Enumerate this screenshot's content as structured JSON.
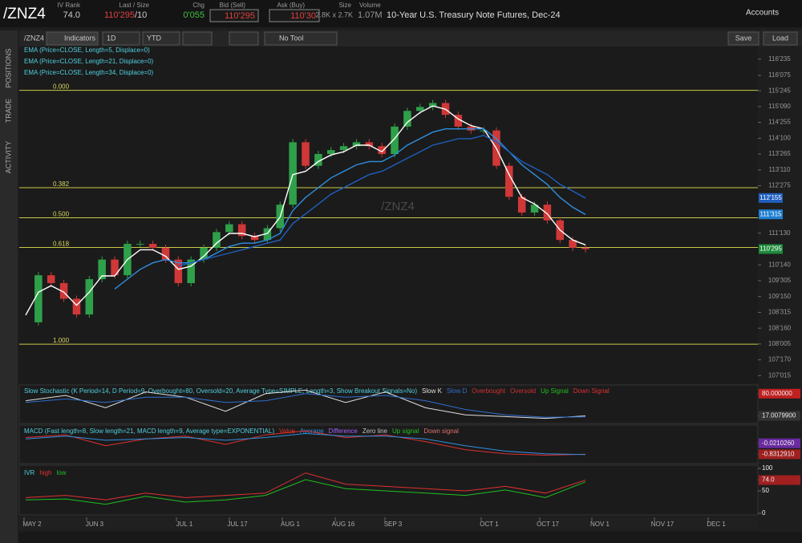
{
  "header": {
    "symbol": "/ZNZ4",
    "iv_rank_label": "IV Rank",
    "iv_rank": "74.0",
    "last_label": "Last / Size",
    "last": "110'295",
    "last_size": "/10",
    "chg_label": "Chg",
    "chg": "0'055",
    "bid_label": "Bid (Sell)",
    "bid": "110'295",
    "ask_label": "Ask (Buy)",
    "ask": "110'30",
    "size_label": "Size",
    "size": "2.8K x 2.7K",
    "volume_label": "Volume",
    "volume": "1.07M",
    "description": "10-Year U.S. Treasury Note Futures, Dec-24",
    "accounts": "Accounts"
  },
  "toolbar": {
    "symbol": "/ZNZ4",
    "indicators": "Indicators",
    "aggregation": "1D",
    "range": "YTD",
    "tool": "No Tool",
    "save": "Save",
    "load": "Load"
  },
  "sidebar": {
    "tabs": [
      "POSITIONS",
      "TRADE",
      "ACTIVITY"
    ]
  },
  "price": {
    "watermark": "/ZNZ4",
    "studies": [
      "EMA (Price=CLOSE, Length=5, Displace=0)",
      "EMA (Price=CLOSE, Length=21, Displace=0)",
      "EMA (Price=CLOSE, Length=34, Displace=0)"
    ],
    "ylim": [
      106.81,
      117.12
    ],
    "yticks": [
      {
        "value": 116.734375,
        "label": "116'235"
      },
      {
        "value": 116.234375,
        "label": "116'075"
      },
      {
        "value": 115.765625,
        "label": "115'245"
      },
      {
        "value": 115.28125,
        "label": "115'090"
      },
      {
        "value": 114.796875,
        "label": "114'255"
      },
      {
        "value": 114.3125,
        "label": "114'100"
      },
      {
        "value": 113.828125,
        "label": "113'265"
      },
      {
        "value": 113.34375,
        "label": "113'110"
      },
      {
        "value": 112.859375,
        "label": "112'275"
      },
      {
        "value": 111.40625,
        "label": "111'130"
      },
      {
        "value": 110.4375,
        "label": "110'140"
      },
      {
        "value": 109.953125,
        "label": "109'305"
      },
      {
        "value": 109.46875,
        "label": "109'150"
      },
      {
        "value": 108.984375,
        "label": "108'315"
      },
      {
        "value": 108.5,
        "label": "108'160"
      },
      {
        "value": 108.015625,
        "label": "108'005"
      },
      {
        "value": 107.53125,
        "label": "107'170"
      },
      {
        "value": 107.046875,
        "label": "107'015"
      }
    ],
    "markers": [
      {
        "value": 112.484375,
        "label": "112'155",
        "color": "#1f5fbf"
      },
      {
        "value": 111.984375,
        "label": "111'315",
        "color": "#1f7fd0"
      },
      {
        "value": 110.921875,
        "label": "110'295",
        "color": "#1e8a3c"
      }
    ],
    "fib": [
      {
        "label": "0.000",
        "price": 115.78
      },
      {
        "label": "0.382",
        "price": 112.8
      },
      {
        "label": "0.500",
        "price": 111.88
      },
      {
        "label": "0.618",
        "price": 110.97
      },
      {
        "label": "1.000",
        "price": 108.01
      }
    ],
    "closes": [
      108.68,
      110.12,
      109.88,
      109.4,
      108.92,
      110.0,
      110.6,
      110.12,
      111.08,
      111.08,
      110.96,
      110.6,
      109.88,
      110.6,
      110.96,
      111.44,
      111.68,
      111.32,
      111.2,
      111.56,
      112.28,
      114.19,
      113.47,
      113.83,
      113.95,
      114.07,
      114.19,
      114.07,
      113.83,
      114.67,
      115.15,
      115.27,
      115.39,
      115.03,
      114.67,
      114.55,
      114.55,
      113.47,
      112.52,
      112.04,
      112.28,
      111.8,
      111.2,
      110.96,
      110.92
    ],
    "ema": [
      {
        "color": "#ffffff",
        "values": [
          108.9,
          109.6,
          109.8,
          109.6,
          109.2,
          109.6,
          110.1,
          110.1,
          110.6,
          110.9,
          110.9,
          110.7,
          110.3,
          110.4,
          110.7,
          111.1,
          111.4,
          111.4,
          111.3,
          111.4,
          111.9,
          113.2,
          113.3,
          113.6,
          113.8,
          113.9,
          114.1,
          114.1,
          113.9,
          114.3,
          114.8,
          115.1,
          115.3,
          115.2,
          114.9,
          114.7,
          114.6,
          114.0,
          113.2,
          112.5,
          112.3,
          112.0,
          111.5,
          111.2,
          111.05
        ]
      },
      {
        "color": "#2f8fe0",
        "values": [
          null,
          null,
          null,
          null,
          null,
          null,
          null,
          109.7,
          110.0,
          110.3,
          110.5,
          110.6,
          110.5,
          110.5,
          110.6,
          110.8,
          111.0,
          111.1,
          111.1,
          111.2,
          111.4,
          112.1,
          112.5,
          112.8,
          113.1,
          113.3,
          113.5,
          113.6,
          113.6,
          113.8,
          114.1,
          114.3,
          114.5,
          114.6,
          114.6,
          114.6,
          114.6,
          114.3,
          113.9,
          113.5,
          113.2,
          112.9,
          112.5,
          112.2,
          111.98
        ]
      },
      {
        "color": "#1f5fbf",
        "values": [
          null,
          null,
          null,
          null,
          null,
          null,
          null,
          null,
          null,
          null,
          null,
          null,
          110.4,
          110.5,
          110.6,
          110.7,
          110.8,
          110.9,
          111.0,
          111.1,
          111.2,
          111.7,
          112.0,
          112.3,
          112.6,
          112.8,
          113.0,
          113.2,
          113.3,
          113.5,
          113.7,
          113.9,
          114.1,
          114.2,
          114.3,
          114.3,
          114.4,
          114.2,
          113.9,
          113.6,
          113.4,
          113.2,
          112.9,
          112.7,
          112.48
        ]
      }
    ]
  },
  "stochastic": {
    "title": "Slow Stochastic (K Period=14, D Period=9, Overbought=80, Oversold=20, Average Type=SIMPLE, Length=3, Show Breakout Signals=No)",
    "legend": [
      {
        "name": "Slow K",
        "color": "#e0e0e0"
      },
      {
        "name": "Slow D",
        "color": "#2f6fd0"
      },
      {
        "name": "Overbought",
        "color": "#d03030"
      },
      {
        "name": "Oversold",
        "color": "#d03030"
      },
      {
        "name": "Up Signal",
        "color": "#20c020"
      },
      {
        "name": "Down Signal",
        "color": "#e03030"
      }
    ],
    "ylim": [
      0,
      100
    ],
    "yticks": [
      {
        "value": 80,
        "label": "80.000000"
      },
      {
        "value": 17.00799,
        "label": "17.0079900"
      }
    ],
    "series": [
      {
        "color": "#e0e0e0",
        "values": [
          60,
          75,
          40,
          85,
          70,
          30,
          80,
          90,
          55,
          85,
          40,
          20,
          15,
          10,
          17
        ]
      },
      {
        "color": "#2f6fd0",
        "values": [
          55,
          65,
          55,
          70,
          70,
          55,
          60,
          80,
          70,
          75,
          60,
          35,
          20,
          13,
          14
        ]
      }
    ]
  },
  "macd": {
    "title": "MACD (Fast length=8, Slow length=21, MACD length=9, Average type=EXPONENTIAL)",
    "legend": [
      {
        "name": "Value",
        "color": "#e03030"
      },
      {
        "name": "Average",
        "color": "#2f8fe0"
      },
      {
        "name": "Difference",
        "color": "#a060ff"
      },
      {
        "name": "Zero line",
        "color": "#c0c0c0"
      },
      {
        "name": "Up signal",
        "color": "#20c020"
      },
      {
        "name": "Down signal",
        "color": "#e07070"
      }
    ],
    "ylim": [
      -1.4,
      1.2
    ],
    "yticks": [
      {
        "value": -0.021026,
        "label": "-0.0210260"
      },
      {
        "value": -0.831291,
        "label": "-0.8312910"
      }
    ],
    "series": [
      {
        "color": "#e03030",
        "values": [
          0.4,
          0.6,
          -0.2,
          0.3,
          0.5,
          -0.1,
          0.6,
          0.9,
          0.4,
          0.6,
          0.1,
          -0.5,
          -0.8,
          -0.9,
          -0.83
        ]
      },
      {
        "color": "#2f8fe0",
        "values": [
          0.3,
          0.5,
          0.2,
          0.3,
          0.4,
          0.2,
          0.4,
          0.7,
          0.5,
          0.5,
          0.3,
          -0.2,
          -0.6,
          -0.8,
          -0.85
        ]
      }
    ]
  },
  "ivr": {
    "title": "IVR",
    "legend": [
      {
        "name": "high",
        "color": "#e03030"
      },
      {
        "name": "low",
        "color": "#20c020"
      }
    ],
    "ylim": [
      0,
      100
    ],
    "yticks": [
      100,
      50,
      0,
      {
        "value": 74,
        "label": "74.0"
      }
    ],
    "series": [
      {
        "color": "#e03030",
        "values": [
          35,
          40,
          30,
          45,
          35,
          40,
          45,
          90,
          65,
          60,
          55,
          50,
          60,
          45,
          74
        ]
      },
      {
        "color": "#20c020",
        "values": [
          30,
          32,
          20,
          38,
          25,
          30,
          40,
          75,
          55,
          50,
          45,
          40,
          52,
          35,
          70
        ]
      }
    ]
  },
  "xaxis": [
    "MAY 2",
    "JUN 3",
    "JUL 1",
    "JUL 17",
    "AUG 1",
    "AUG 16",
    "SEP 3",
    "OCT 1",
    "OCT 17",
    "NOV 1",
    "NOV 17",
    "DEC 1"
  ]
}
